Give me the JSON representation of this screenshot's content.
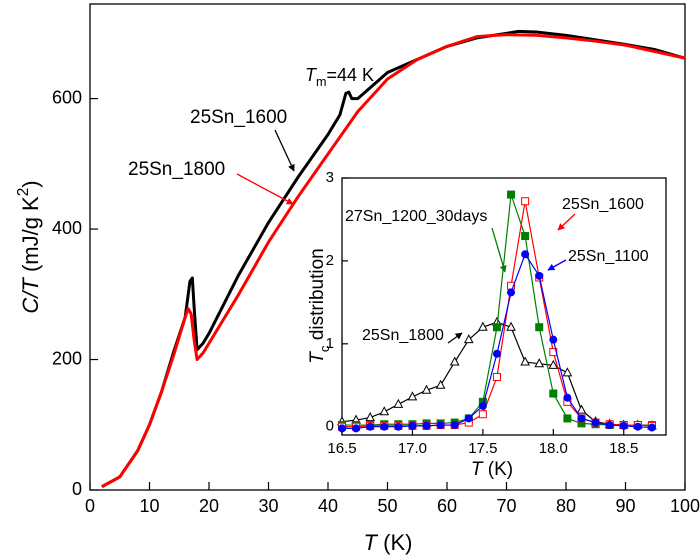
{
  "chart_data": [
    {
      "type": "line",
      "xlabel": [
        "T",
        " (K)"
      ],
      "ylabel": [
        "C/T",
        " (mJ/g K",
        "2",
        ")"
      ],
      "xlim": [
        0,
        100
      ],
      "xticks": [
        0,
        10,
        20,
        30,
        40,
        50,
        60,
        70,
        80,
        90,
        100
      ],
      "ylim": [
        0,
        745
      ],
      "yticks": [
        0,
        200,
        400,
        600
      ],
      "annotations": [
        {
          "text": [
            "T",
            "m",
            "=44 K"
          ]
        }
      ],
      "series": [
        {
          "name": "25Sn_1600",
          "color": "#000000",
          "marker": "none",
          "x": [
            2,
            5,
            8,
            10,
            12,
            14,
            16,
            16.8,
            17.2,
            17.5,
            18,
            19,
            20,
            25,
            30,
            35,
            40,
            42,
            43,
            43.5,
            44,
            45,
            50,
            55,
            60,
            65,
            70,
            72,
            75,
            80,
            85,
            90,
            95,
            100
          ],
          "values": [
            5,
            20,
            60,
            100,
            150,
            210,
            265,
            320,
            325,
            280,
            215,
            225,
            240,
            330,
            410,
            480,
            545,
            575,
            608,
            610,
            600,
            600,
            640,
            660,
            680,
            693,
            700,
            703,
            702,
            697,
            690,
            683,
            675,
            662
          ]
        },
        {
          "name": "25Sn_1800",
          "color": "#ff0000",
          "marker": "none",
          "x": [
            2,
            5,
            8,
            10,
            12,
            14,
            16,
            16.5,
            17,
            17.5,
            18,
            19,
            20,
            25,
            30,
            35,
            40,
            45,
            50,
            55,
            60,
            65,
            70,
            75,
            80,
            85,
            90,
            95,
            100
          ],
          "values": [
            5,
            20,
            60,
            100,
            150,
            205,
            265,
            278,
            270,
            230,
            200,
            210,
            225,
            300,
            380,
            450,
            515,
            580,
            630,
            660,
            680,
            695,
            698,
            697,
            693,
            688,
            682,
            672,
            662
          ]
        }
      ]
    },
    {
      "type": "line",
      "xlabel": [
        "T",
        " (K)"
      ],
      "ylabel": [
        "T",
        "c",
        " distribution"
      ],
      "xlim": [
        16.5,
        18.8
      ],
      "xticks": [
        16.5,
        {
          "value": 17,
          "label": "17.0"
        },
        17.5,
        {
          "value": 18,
          "label": "18.0"
        },
        18.5
      ],
      "ylim": [
        -0.1,
        3.0
      ],
      "yticks": [
        0,
        1,
        2,
        3
      ],
      "series": [
        {
          "name": "25Sn_1800",
          "color": "#000000",
          "marker": "triangle-open",
          "x": [
            16.5,
            16.6,
            16.7,
            16.8,
            16.9,
            17.0,
            17.1,
            17.2,
            17.3,
            17.4,
            17.5,
            17.6,
            17.7,
            17.8,
            17.9,
            18.0,
            18.1,
            18.2,
            18.3,
            18.4,
            18.5,
            18.6,
            18.7
          ],
          "values": [
            0.06,
            0.08,
            0.11,
            0.18,
            0.27,
            0.36,
            0.44,
            0.5,
            0.78,
            1.05,
            1.2,
            1.26,
            1.2,
            0.78,
            0.76,
            0.74,
            0.65,
            0.2,
            0.06,
            0.03,
            0.02,
            0.02,
            0.01
          ]
        },
        {
          "name": "27Sn_1200_30days",
          "color": "#008000",
          "marker": "square",
          "x": [
            16.5,
            16.6,
            16.7,
            16.8,
            16.9,
            17.0,
            17.1,
            17.2,
            17.3,
            17.4,
            17.5,
            17.6,
            17.7,
            17.8,
            17.9,
            18.0,
            18.1,
            18.2,
            18.3,
            18.4,
            18.5,
            18.6,
            18.7
          ],
          "values": [
            0.02,
            0.02,
            0.02,
            0.03,
            0.03,
            0.03,
            0.04,
            0.04,
            0.05,
            0.1,
            0.3,
            1.2,
            2.8,
            2.3,
            1.2,
            0.4,
            0.1,
            0.04,
            0.03,
            0.02,
            0.02,
            0.02,
            0.02
          ]
        },
        {
          "name": "25Sn_1600",
          "color": "#ff0000",
          "marker": "square-open",
          "x": [
            16.5,
            16.6,
            16.7,
            16.8,
            16.9,
            17.0,
            17.1,
            17.2,
            17.3,
            17.4,
            17.5,
            17.6,
            17.7,
            17.8,
            17.9,
            18.0,
            18.1,
            18.2,
            18.3,
            18.4,
            18.5,
            18.6,
            18.7
          ],
          "values": [
            0.0,
            0.0,
            0.01,
            0.01,
            0.01,
            0.01,
            0.01,
            0.02,
            0.02,
            0.05,
            0.15,
            0.6,
            1.7,
            2.72,
            1.8,
            0.9,
            0.3,
            0.1,
            0.05,
            0.03,
            0.02,
            0.02,
            0.01
          ]
        },
        {
          "name": "25Sn_1100",
          "color": "#0000ff",
          "marker": "circle",
          "x": [
            16.5,
            16.6,
            16.7,
            16.8,
            16.9,
            17.0,
            17.1,
            17.2,
            17.3,
            17.4,
            17.5,
            17.6,
            17.7,
            17.8,
            17.9,
            18.0,
            18.1,
            18.2,
            18.3,
            18.4,
            18.5,
            18.6,
            18.7
          ],
          "values": [
            -0.02,
            -0.02,
            0.0,
            0.0,
            0.0,
            0.01,
            0.01,
            0.02,
            0.02,
            0.1,
            0.25,
            0.88,
            1.62,
            2.08,
            1.82,
            1.05,
            0.35,
            0.1,
            0.05,
            0.02,
            0.01,
            0.0,
            -0.01
          ]
        }
      ]
    }
  ]
}
